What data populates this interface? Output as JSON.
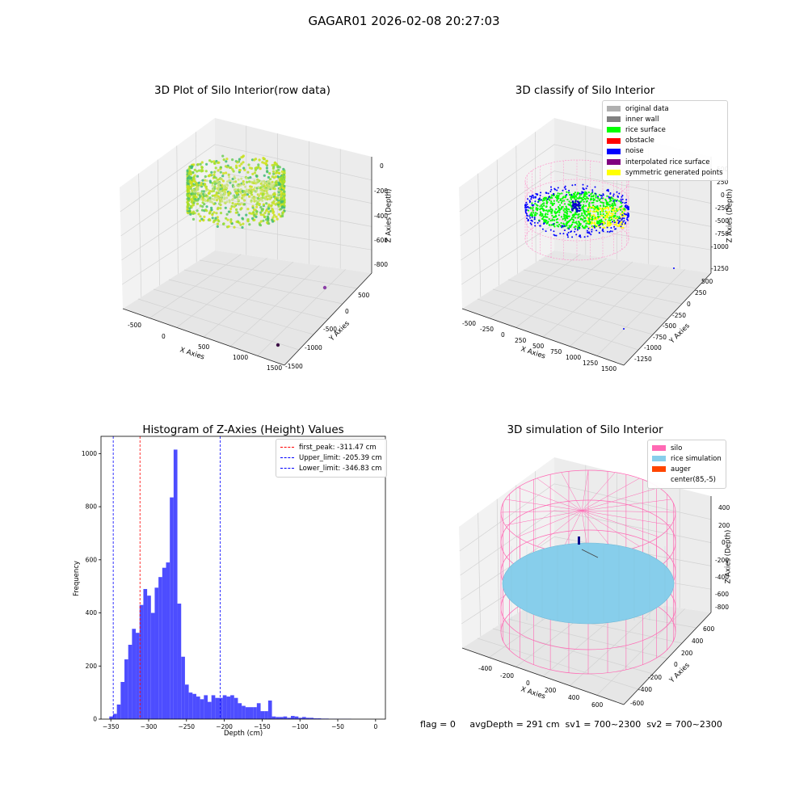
{
  "suptitle": "GAGAR01 2026-02-08 20:27:03",
  "colors": {
    "hist_bar": "#4d4dff",
    "peak_line": "#ff0000",
    "limit_line": "#0000ff",
    "silo": "#ff69b4",
    "rice": "#87ceeb",
    "auger": "#ff4500"
  },
  "panel1": {
    "title": "3D Plot of Silo Interior(row data)",
    "xlabel": "X Axies",
    "ylabel": "Y Axies",
    "zlabel": "Z Axies (Depth)",
    "xticks": [
      "-500",
      "0",
      "500",
      "1000",
      "1500"
    ],
    "yticks": [
      "-1500",
      "-1000",
      "-500",
      "0",
      "500"
    ],
    "zticks": [
      "0",
      "-200",
      "-400",
      "-600",
      "-800"
    ]
  },
  "panel2": {
    "title": "3D classify of Silo Interior",
    "xlabel": "X Axies",
    "ylabel": "Y Axies",
    "zlabel": "Z Axies (Depth)",
    "xticks": [
      "-500",
      "-250",
      "0",
      "250",
      "500",
      "750",
      "1000",
      "1250",
      "1500"
    ],
    "yticks": [
      "-1250",
      "-1000",
      "-750",
      "-500",
      "-250",
      "0",
      "250",
      "500"
    ],
    "zticks": [
      "500",
      "250",
      "0",
      "-250",
      "-500",
      "-750",
      "-1000",
      "-1250"
    ],
    "legend": [
      {
        "label": "original data",
        "color": "#b0b0b0"
      },
      {
        "label": "inner wall",
        "color": "#808080"
      },
      {
        "label": "rice surface",
        "color": "#00ff00"
      },
      {
        "label": "obstacle",
        "color": "#ff0000"
      },
      {
        "label": "noise",
        "color": "#0000ff"
      },
      {
        "label": "interpolated rice surface",
        "color": "#800080"
      },
      {
        "label": "symmetric generated points",
        "color": "#ffff00"
      }
    ]
  },
  "panel4": {
    "title": "3D simulation of Silo Interior",
    "xlabel": "X Axies",
    "ylabel": "Y Axies",
    "zlabel": "Z Axies (Depth)",
    "xticks": [
      "-400",
      "-200",
      "0",
      "200",
      "400",
      "600"
    ],
    "yticks": [
      "-600",
      "-400",
      "-200",
      "0",
      "200",
      "400",
      "600"
    ],
    "zticks": [
      "400",
      "200",
      "0",
      "-200",
      "-400",
      "-600",
      "-800"
    ],
    "legend": [
      {
        "label": "silo",
        "color": "#ff69b4"
      },
      {
        "label": "rice simulation",
        "color": "#87ceeb"
      },
      {
        "label": "auger",
        "color": "#ff4500"
      },
      {
        "label": "center(85,-5)",
        "color": ""
      }
    ]
  },
  "footer": "flag = 0     avgDepth = 291 cm  sv1 = 700~2300  sv2 = 700~2300",
  "chart_data": {
    "type": "bar",
    "title": "Histogram of Z-Axies (Height) Values",
    "xlabel": "Depth (cm)",
    "ylabel": "Frequency",
    "xlim": [
      -363,
      13
    ],
    "ylim": [
      0,
      1065
    ],
    "xticks": [
      -350,
      -300,
      -250,
      -200,
      -150,
      -100,
      -50,
      0
    ],
    "yticks": [
      0,
      200,
      400,
      600,
      800,
      1000
    ],
    "bin_edges": [
      -352,
      -347,
      -342,
      -337,
      -332,
      -327,
      -322,
      -317,
      -312,
      -307,
      -302,
      -297,
      -292,
      -287,
      -282,
      -277,
      -272,
      -267,
      -262,
      -257,
      -252,
      -247,
      -242,
      -237,
      -232,
      -227,
      -222,
      -217,
      -212,
      -207,
      -202,
      -197,
      -192,
      -187,
      -182,
      -177,
      -172,
      -167,
      -162,
      -157,
      -152,
      -147,
      -142,
      -137,
      -132,
      -127,
      -122,
      -117,
      -112,
      -107,
      -102,
      -97,
      -92,
      -87,
      -82,
      -77,
      -72,
      -67,
      -62,
      -57,
      -52,
      -47,
      -42,
      -37,
      -32,
      -27,
      -22,
      -17,
      -12,
      -7,
      -2,
      3
    ],
    "values": [
      10,
      20,
      55,
      140,
      225,
      280,
      340,
      325,
      430,
      490,
      465,
      400,
      495,
      535,
      570,
      590,
      835,
      1015,
      435,
      235,
      130,
      100,
      95,
      85,
      75,
      90,
      65,
      90,
      80,
      80,
      90,
      85,
      90,
      80,
      60,
      50,
      45,
      45,
      45,
      60,
      30,
      30,
      70,
      10,
      8,
      8,
      10,
      5,
      12,
      10,
      5,
      8,
      5,
      5,
      3,
      3,
      2,
      2,
      1,
      1,
      1,
      1,
      1,
      1,
      0,
      0,
      0,
      0,
      0,
      0,
      0
    ],
    "lines": [
      {
        "name": "first_peak: -311.47 cm",
        "x": -311.47,
        "color": "#ff0000"
      },
      {
        "name": "Upper_limit: -205.39 cm",
        "x": -205.39,
        "color": "#0000ff"
      },
      {
        "name": "Lower_limit: -346.83 cm",
        "x": -346.83,
        "color": "#0000ff"
      }
    ],
    "legend_position": "upper right",
    "grid": false
  }
}
